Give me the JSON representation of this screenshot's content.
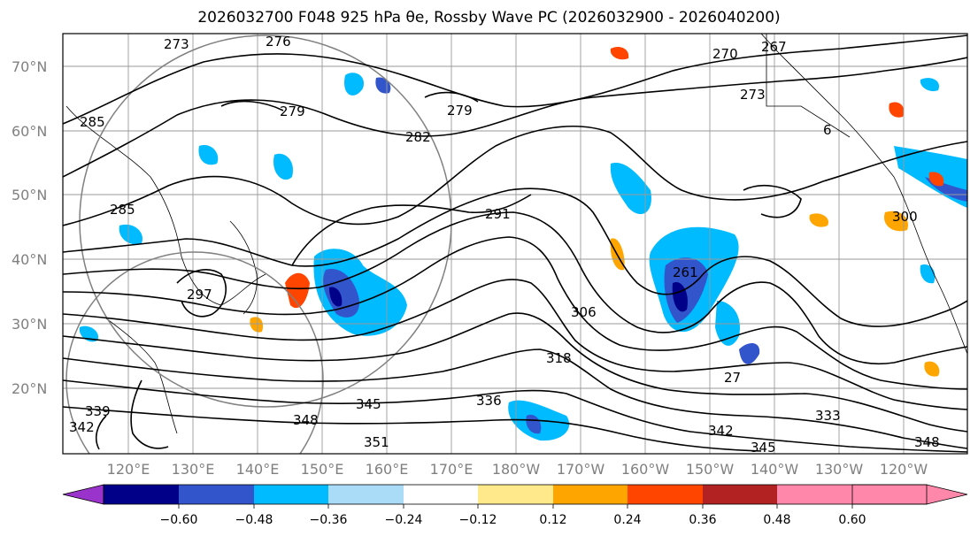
{
  "title": "2026032700 F048 925 hPa θe, Rossby Wave PC (2026032900 - 2026040200)",
  "lat_labels": [
    "70°N",
    "60°N",
    "50°N",
    "40°N",
    "30°N",
    "20°N"
  ],
  "lon_labels": [
    "120°E",
    "130°E",
    "140°E",
    "150°E",
    "160°E",
    "170°E",
    "180°W",
    "170°W",
    "160°W",
    "150°W",
    "140°W",
    "130°W",
    "120°W"
  ],
  "colorbar": {
    "ticks": [
      "−0.60",
      "−0.48",
      "−0.36",
      "−0.24",
      "−0.12",
      "0.12",
      "0.24",
      "0.36",
      "0.48",
      "0.60"
    ],
    "colors": [
      "#9933cc",
      "#000088",
      "#3355cc",
      "#00bbff",
      "#aadcf8",
      "#ffffff",
      "#ffe98a",
      "#ffa500",
      "#ff4500",
      "#b22222",
      "#ff88aa",
      "#ff88aa"
    ]
  },
  "contour_labels": [
    "276",
    "273",
    "279",
    "285",
    "282",
    "279",
    "270",
    "267",
    "273",
    "291",
    "297",
    "306",
    "318",
    "336",
    "345",
    "348",
    "351",
    "342",
    "333",
    "339",
    "342",
    "345",
    "348",
    "300",
    "261",
    "27",
    "285",
    "6"
  ]
}
